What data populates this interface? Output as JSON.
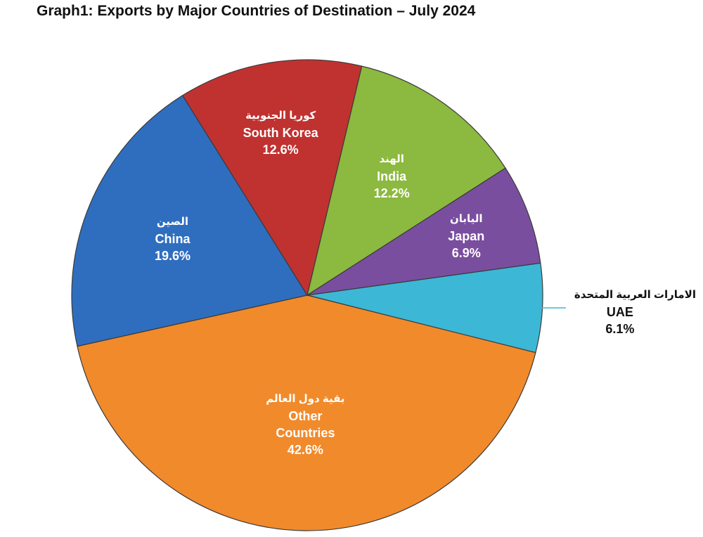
{
  "chart_data": {
    "type": "pie",
    "title": "Graph1: Exports by Major Countries of Destination – July 2024",
    "categories": [
      "India",
      "Japan",
      "UAE",
      "Other Countries",
      "China",
      "South Korea"
    ],
    "categories_arabic": [
      "الهند",
      "اليابان",
      "الامارات العربية المتحدة",
      "بقية دول العالم",
      "الصين",
      "كوريا الجنوبية"
    ],
    "values": [
      12.2,
      6.9,
      6.1,
      42.6,
      19.6,
      12.6
    ],
    "value_labels": [
      "12.2%",
      "6.9%",
      "6.1%",
      "42.6%",
      "19.6%",
      "12.6%"
    ],
    "colors": [
      "#8cb93f",
      "#7a4e9f",
      "#3db7d6",
      "#f18a2b",
      "#2f6ebf",
      "#c03230"
    ]
  }
}
